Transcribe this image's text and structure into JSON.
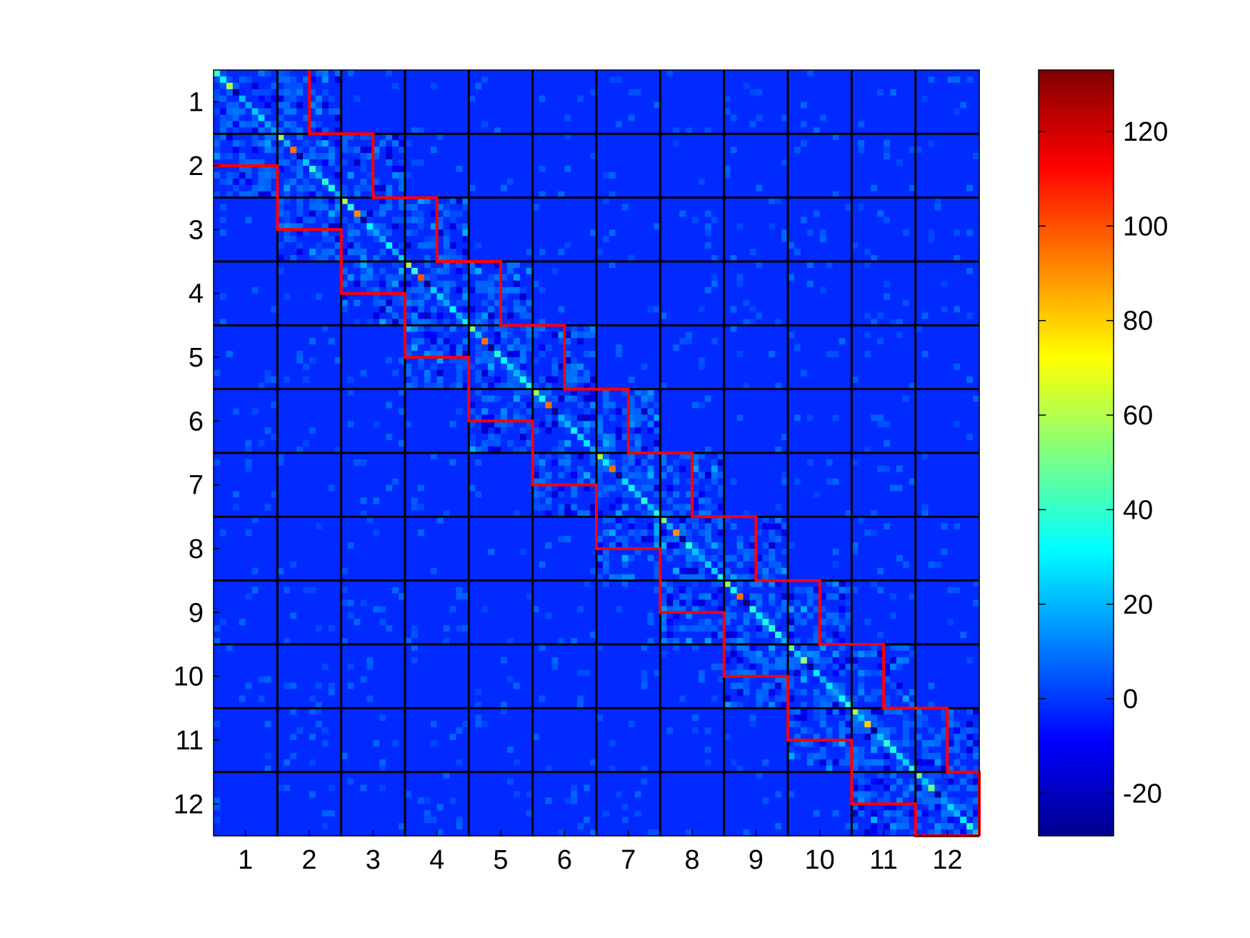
{
  "chart_data": {
    "type": "heatmap",
    "title": "",
    "xlabel": "",
    "ylabel": "",
    "x_categories": [
      "1",
      "2",
      "3",
      "4",
      "5",
      "6",
      "7",
      "8",
      "9",
      "10",
      "11",
      "12"
    ],
    "y_categories": [
      "1",
      "2",
      "3",
      "4",
      "5",
      "6",
      "7",
      "8",
      "9",
      "10",
      "11",
      "12"
    ],
    "blocks_per_side": 12,
    "cells_per_block": 10,
    "background_value": -2,
    "colorbar": {
      "colormap": "jet",
      "range": [
        -29,
        133
      ],
      "ticks": [
        -20,
        0,
        20,
        40,
        60,
        80,
        100,
        120
      ],
      "tick_labels": [
        "-20",
        "0",
        "20",
        "40",
        "60",
        "80",
        "100",
        "120"
      ]
    },
    "grid": true,
    "grid_color": "#000000",
    "highlight_color": "#ff0000",
    "highlight": "staircase band outlining the block-diagonal region",
    "diagonal_peak_values": [
      60,
      95,
      90,
      100,
      95,
      95,
      95,
      90,
      95,
      55,
      80,
      50
    ],
    "note_pattern": "block tridiagonal structure; strong values near diagonal, near-zero elsewhere"
  }
}
